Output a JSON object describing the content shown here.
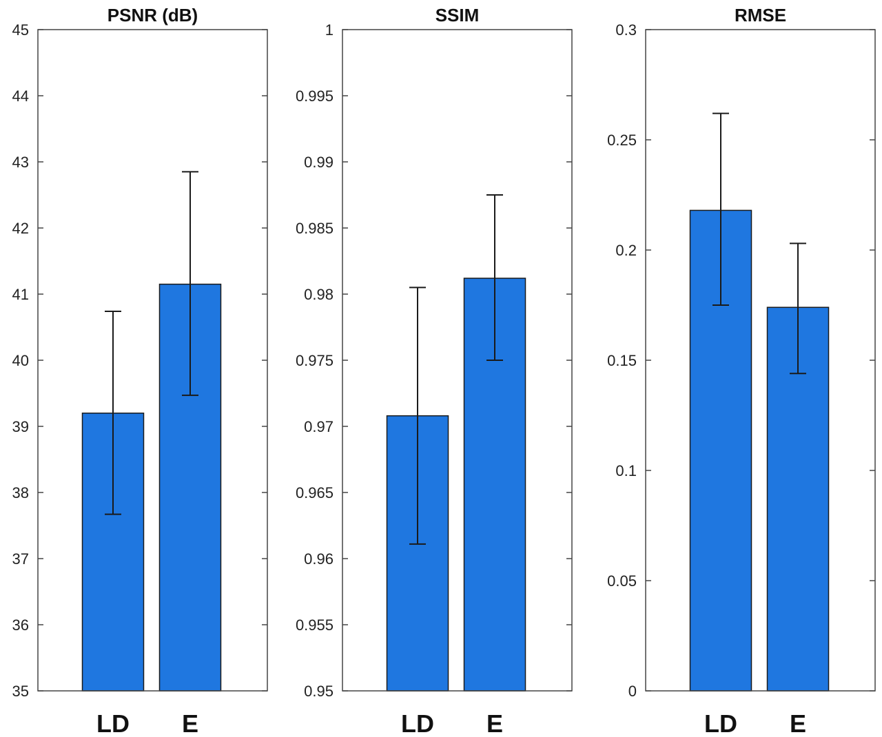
{
  "colors": {
    "bar": "#1f77e0",
    "bar_edge": "#1a1a1a",
    "axis": "#444444",
    "errorbar": "#1a1a1a"
  },
  "chart_data": [
    {
      "type": "bar",
      "title": "PSNR (dB)",
      "categories": [
        "LD",
        "E"
      ],
      "values": [
        39.2,
        41.15
      ],
      "error_low": [
        37.67,
        39.47
      ],
      "error_high": [
        40.74,
        42.85
      ],
      "ylim": [
        35,
        45
      ],
      "yticks": [
        "35",
        "36",
        "37",
        "38",
        "39",
        "40",
        "41",
        "42",
        "43",
        "44",
        "45"
      ],
      "xlabel": "",
      "ylabel": "",
      "grid": false
    },
    {
      "type": "bar",
      "title": "SSIM",
      "categories": [
        "LD",
        "E"
      ],
      "values": [
        0.9708,
        0.9812
      ],
      "error_low": [
        0.9611,
        0.975
      ],
      "error_high": [
        0.9805,
        0.9875
      ],
      "ylim": [
        0.95,
        1
      ],
      "yticks": [
        "0.95",
        "0.955",
        "0.96",
        "0.965",
        "0.97",
        "0.975",
        "0.98",
        "0.985",
        "0.99",
        "0.995",
        "1"
      ],
      "xlabel": "",
      "ylabel": "",
      "grid": false
    },
    {
      "type": "bar",
      "title": "RMSE",
      "categories": [
        "LD",
        "E"
      ],
      "values": [
        0.218,
        0.174
      ],
      "error_low": [
        0.175,
        0.144
      ],
      "error_high": [
        0.262,
        0.203
      ],
      "ylim": [
        0,
        0.3
      ],
      "yticks": [
        "0",
        "0.05",
        "0.1",
        "0.15",
        "0.2",
        "0.25",
        "0.3"
      ],
      "xlabel": "",
      "ylabel": "",
      "grid": false
    }
  ]
}
